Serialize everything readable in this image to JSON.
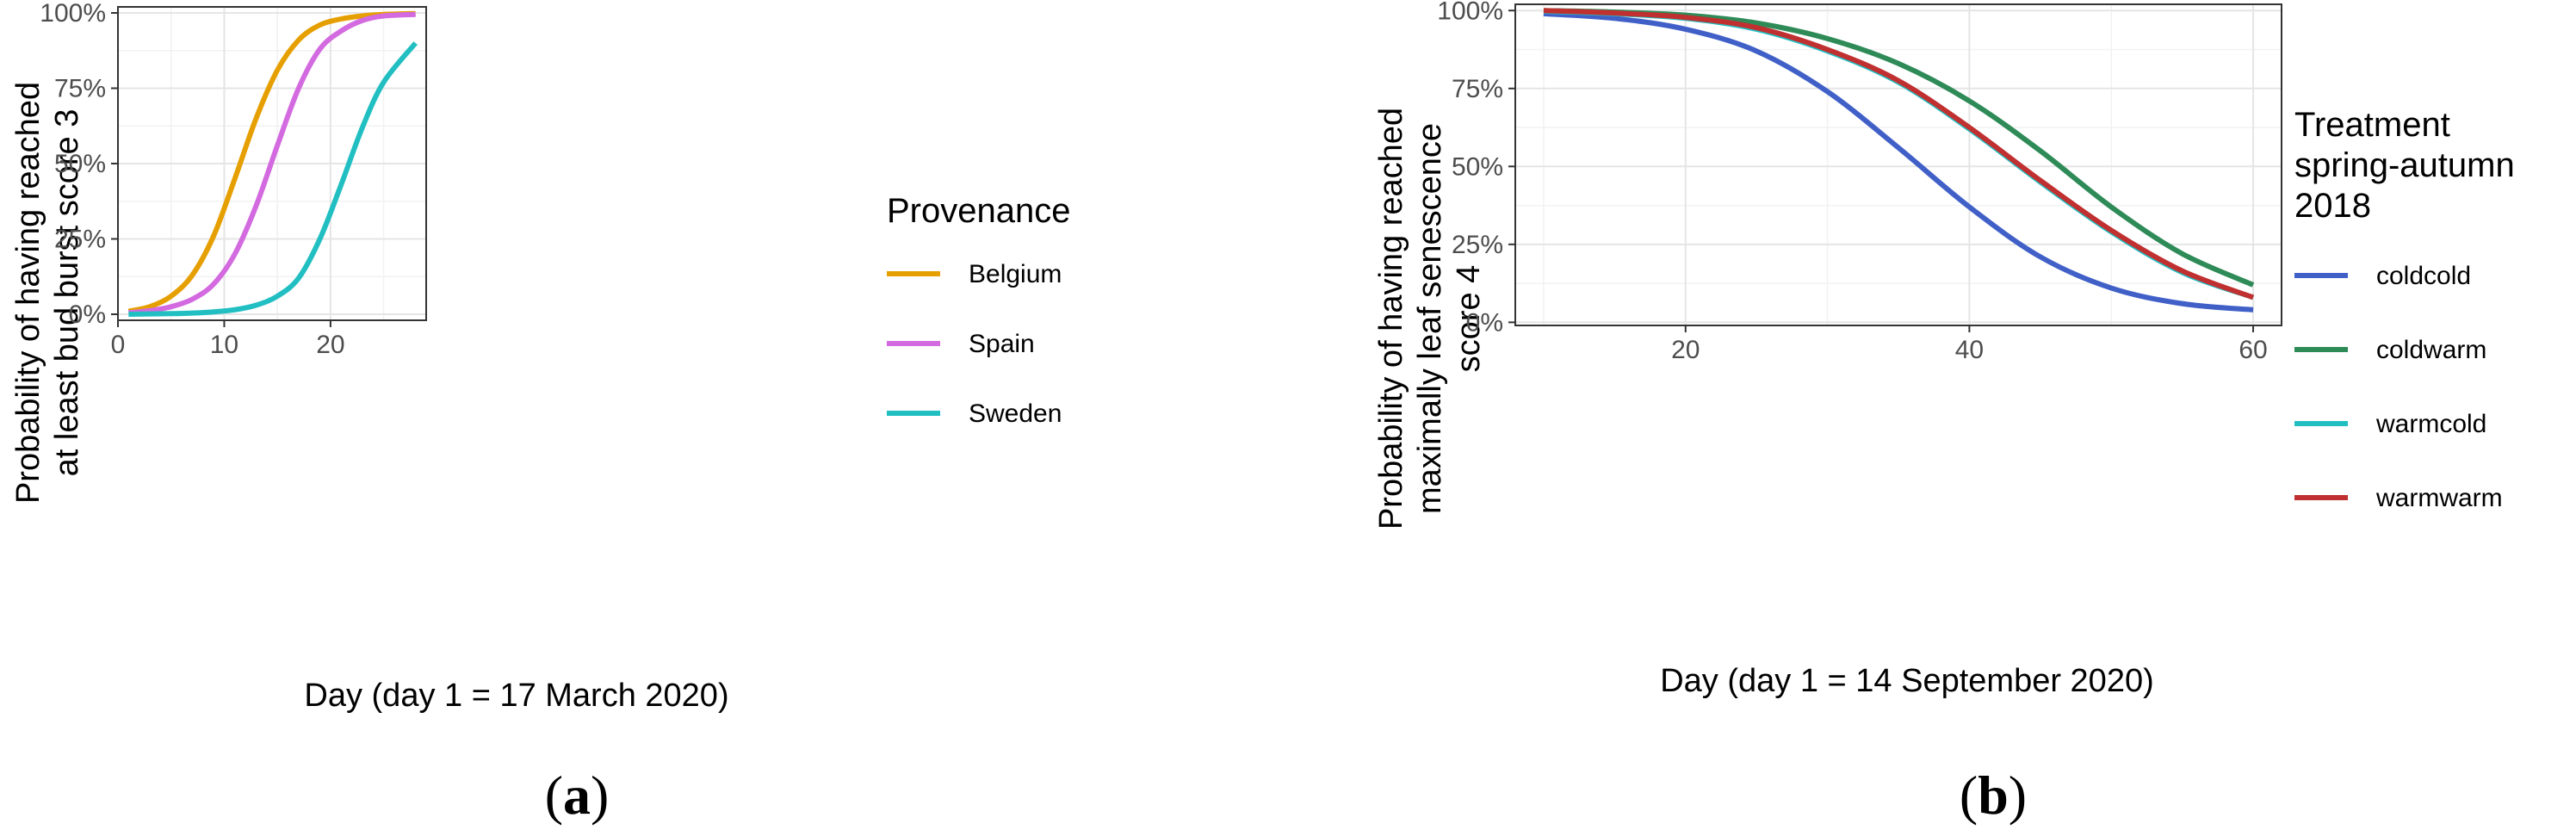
{
  "chart_data": [
    {
      "panel": "a",
      "type": "line",
      "xlabel": "Day (day 1 = 17 March 2020)",
      "ylabel_lines": [
        "Probability of having reached",
        "at least bud burst score 3"
      ],
      "xlim": [
        0,
        29
      ],
      "ylim": [
        -0.02,
        1.02
      ],
      "xticks": [
        0,
        10,
        20
      ],
      "yticks": [
        0,
        0.25,
        0.5,
        0.75,
        1.0
      ],
      "ytick_labels": [
        "0%",
        "25%",
        "50%",
        "75%",
        "100%"
      ],
      "grid": true,
      "legend_title_lines": [
        "Provenance"
      ],
      "legend_position": "right",
      "x": [
        1,
        3,
        5,
        7,
        9,
        11,
        13,
        15,
        17,
        19,
        21,
        23,
        25,
        28
      ],
      "series": [
        {
          "name": "Belgium",
          "color": "#e69f00",
          "values": [
            0.01,
            0.025,
            0.06,
            0.13,
            0.26,
            0.45,
            0.65,
            0.81,
            0.91,
            0.96,
            0.98,
            0.99,
            0.995,
            0.998
          ]
        },
        {
          "name": "Spain",
          "color": "#d36ae0",
          "values": [
            0.005,
            0.012,
            0.025,
            0.05,
            0.1,
            0.2,
            0.36,
            0.56,
            0.75,
            0.88,
            0.94,
            0.975,
            0.99,
            0.995
          ]
        },
        {
          "name": "Sweden",
          "color": "#22bfc2",
          "values": [
            0.0,
            0.001,
            0.002,
            0.004,
            0.008,
            0.015,
            0.03,
            0.06,
            0.12,
            0.25,
            0.43,
            0.62,
            0.77,
            0.9
          ]
        }
      ]
    },
    {
      "panel": "b",
      "type": "line",
      "xlabel": "Day (day 1 = 14 September 2020)",
      "ylabel_lines": [
        "Probability of having reached",
        "maximally leaf senescence",
        "score 4"
      ],
      "xlim": [
        8,
        62
      ],
      "ylim": [
        -0.01,
        1.02
      ],
      "xticks": [
        20,
        40,
        60
      ],
      "yticks": [
        0,
        0.25,
        0.5,
        0.75,
        1.0
      ],
      "ytick_labels": [
        "0%",
        "25%",
        "50%",
        "75%",
        "100%"
      ],
      "grid": true,
      "legend_title_lines": [
        "Treatment",
        "spring-autumn",
        "2018"
      ],
      "legend_position": "right",
      "x": [
        10,
        15,
        20,
        25,
        30,
        35,
        40,
        45,
        50,
        55,
        60
      ],
      "series": [
        {
          "name": "coldcold",
          "color": "#4060c8",
          "values": [
            0.99,
            0.975,
            0.94,
            0.87,
            0.74,
            0.56,
            0.37,
            0.21,
            0.11,
            0.06,
            0.04
          ]
        },
        {
          "name": "coldwarm",
          "color": "#2e8b57",
          "values": [
            1.0,
            0.995,
            0.985,
            0.96,
            0.91,
            0.83,
            0.71,
            0.55,
            0.37,
            0.22,
            0.12
          ]
        },
        {
          "name": "warmcold",
          "color": "#22bfc2",
          "values": [
            0.998,
            0.99,
            0.975,
            0.94,
            0.87,
            0.77,
            0.62,
            0.45,
            0.29,
            0.16,
            0.08
          ]
        },
        {
          "name": "warmwarm",
          "color": "#c03030",
          "values": [
            1.0,
            0.992,
            0.978,
            0.945,
            0.875,
            0.775,
            0.625,
            0.455,
            0.295,
            0.165,
            0.08
          ]
        }
      ]
    }
  ],
  "captions": [
    "a",
    "b"
  ]
}
